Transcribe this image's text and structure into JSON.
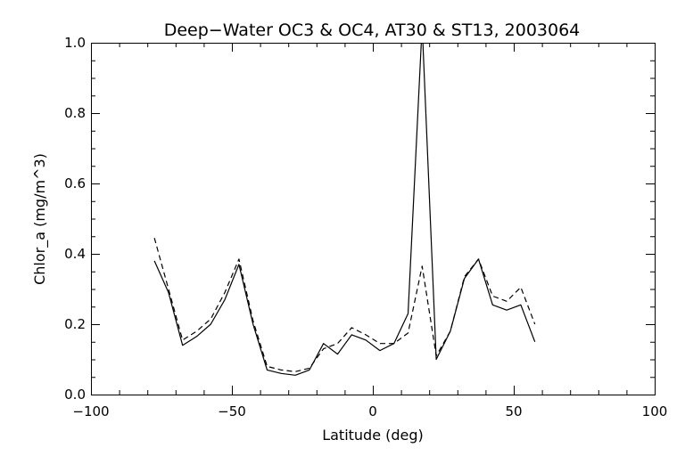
{
  "chart_data": {
    "type": "line",
    "title": "Deep−Water OC3 & OC4, AT30 & ST13, 2003064",
    "xlabel": "Latitude (deg)",
    "ylabel": "Chlor_a (mg/m^3)",
    "xlim": [
      -100,
      100
    ],
    "ylim": [
      0.0,
      1.0
    ],
    "xticks": [
      -100,
      -50,
      0,
      50,
      100
    ],
    "xtick_labels": [
      "−100",
      "−50",
      "0",
      "50",
      "100"
    ],
    "yticks": [
      0.0,
      0.2,
      0.4,
      0.6,
      0.8,
      1.0
    ],
    "ytick_labels": [
      "0.0",
      "0.2",
      "0.4",
      "0.6",
      "0.8",
      "1.0"
    ],
    "x_minor_step": 10,
    "y_minor_step": 0.05,
    "grid": false,
    "series": [
      {
        "style": "solid",
        "color": "#000000",
        "x": [
          -77.5,
          -72.5,
          -67.5,
          -62.5,
          -57.5,
          -52.5,
          -47.5,
          -42.5,
          -37.5,
          -32.5,
          -27.5,
          -22.5,
          -17.5,
          -12.5,
          -7.5,
          -2.5,
          2.5,
          7.5,
          12.5,
          17.5,
          22.5,
          27.5,
          32.5,
          37.5,
          42.5,
          47.5,
          52.5,
          57.5
        ],
        "y": [
          0.38,
          0.29,
          0.14,
          0.165,
          0.2,
          0.27,
          0.37,
          0.2,
          0.07,
          0.06,
          0.055,
          0.07,
          0.145,
          0.115,
          0.17,
          0.155,
          0.125,
          0.145,
          0.23,
          1.05,
          0.1,
          0.18,
          0.33,
          0.385,
          0.255,
          0.24,
          0.255,
          0.15
        ]
      },
      {
        "style": "dashed",
        "color": "#000000",
        "x": [
          -77.5,
          -72.5,
          -67.5,
          -62.5,
          -57.5,
          -52.5,
          -47.5,
          -42.5,
          -37.5,
          -32.5,
          -27.5,
          -22.5,
          -17.5,
          -12.5,
          -7.5,
          -2.5,
          2.5,
          7.5,
          12.5,
          17.5,
          22.5,
          27.5,
          32.5,
          37.5,
          42.5,
          47.5,
          52.5,
          57.5
        ],
        "y": [
          0.445,
          0.3,
          0.155,
          0.18,
          0.215,
          0.29,
          0.385,
          0.21,
          0.08,
          0.07,
          0.065,
          0.075,
          0.13,
          0.145,
          0.19,
          0.17,
          0.145,
          0.145,
          0.175,
          0.365,
          0.11,
          0.18,
          0.335,
          0.385,
          0.28,
          0.265,
          0.305,
          0.2
        ]
      }
    ]
  }
}
